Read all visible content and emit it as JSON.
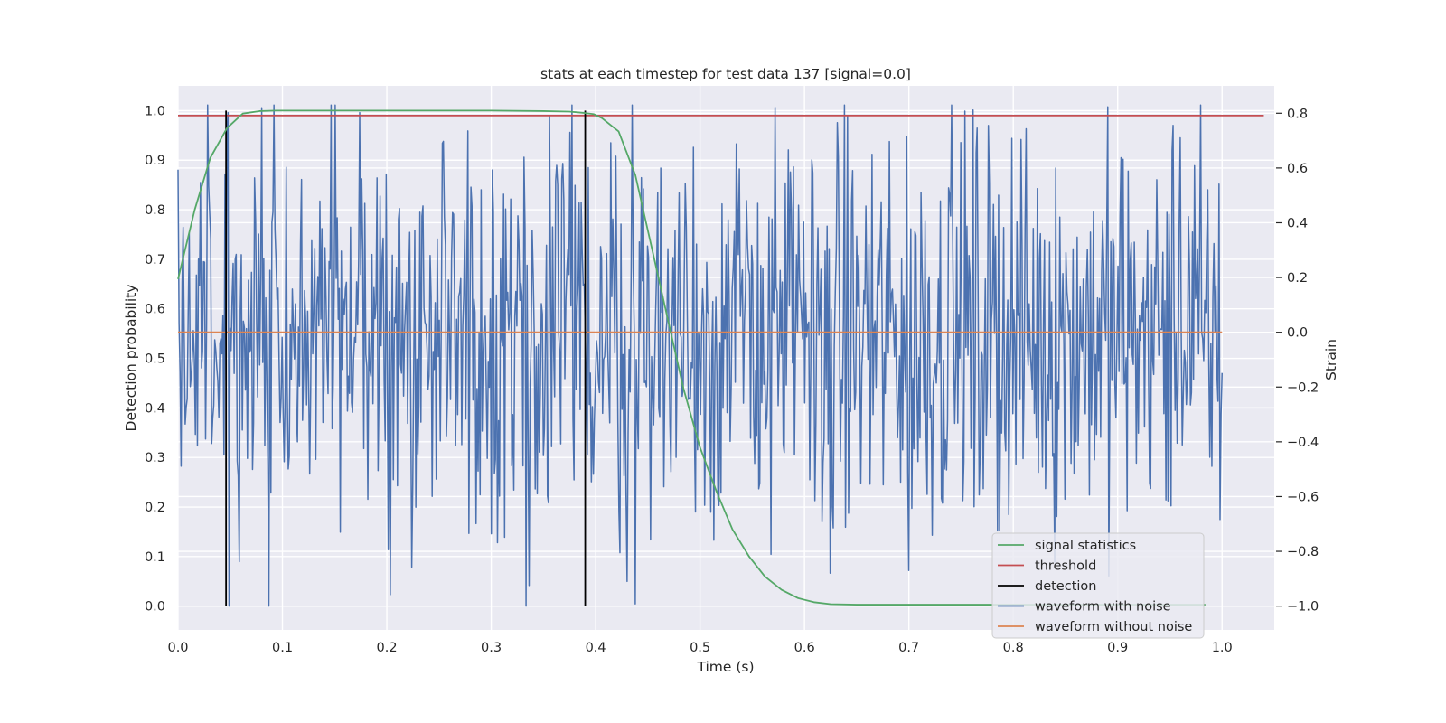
{
  "chart_data": {
    "type": "line",
    "title": "stats at each timestep for test data 137 [signal=0.0]",
    "xlabel": "Time (s)",
    "ylabel": "Detection probability",
    "y2label": "Strain",
    "xlim": [
      0.0,
      1.05
    ],
    "ylim": [
      -0.048,
      1.05
    ],
    "y2lim": [
      -1.087,
      0.9
    ],
    "xticks": [
      "0.0",
      "0.1",
      "0.2",
      "0.3",
      "0.4",
      "0.5",
      "0.6",
      "0.7",
      "0.8",
      "0.9",
      "1.0"
    ],
    "yticks": [
      "0.0",
      "0.1",
      "0.2",
      "0.3",
      "0.4",
      "0.5",
      "0.6",
      "0.7",
      "0.8",
      "0.9",
      "1.0"
    ],
    "y2ticks": [
      "−1.0",
      "−0.8",
      "−0.6",
      "−0.4",
      "−0.2",
      "0.0",
      "0.2",
      "0.4",
      "0.6",
      "0.8"
    ],
    "grid": true,
    "legend_position": "lower-right",
    "colors": {
      "signal_statistics": "#55a868",
      "threshold": "#c44e52",
      "detection": "#000000",
      "waveform_with_noise": "#4c72b0",
      "waveform_without_noise": "#dd8452",
      "axes_background": "#eaeaf2",
      "grid": "#ffffff"
    },
    "series": [
      {
        "name": "signal statistics",
        "axis": "left",
        "x": [
          0.0,
          0.016,
          0.031,
          0.047,
          0.062,
          0.078,
          0.094,
          0.109,
          0.125,
          0.2,
          0.3,
          0.35,
          0.375,
          0.39,
          0.398,
          0.406,
          0.422,
          0.438,
          0.453,
          0.469,
          0.484,
          0.5,
          0.516,
          0.531,
          0.547,
          0.562,
          0.578,
          0.594,
          0.609,
          0.625,
          0.65,
          0.7,
          0.8,
          0.9,
          0.984
        ],
        "y": [
          0.66,
          0.8,
          0.905,
          0.965,
          0.994,
          0.999,
          1.0,
          1.0,
          1.0,
          1.0,
          1.0,
          0.999,
          0.998,
          0.995,
          0.993,
          0.985,
          0.958,
          0.87,
          0.73,
          0.58,
          0.44,
          0.32,
          0.23,
          0.155,
          0.1,
          0.06,
          0.033,
          0.016,
          0.008,
          0.004,
          0.003,
          0.003,
          0.003,
          0.003,
          0.003
        ]
      },
      {
        "name": "threshold",
        "axis": "left",
        "x": [
          0.0,
          1.04
        ],
        "y": [
          0.99,
          0.99
        ]
      },
      {
        "name": "detection",
        "axis": "left",
        "segments": [
          {
            "x": 0.046,
            "y": [
              0.0,
              1.0
            ]
          },
          {
            "x": 0.39,
            "y": [
              0.0,
              1.0
            ]
          }
        ]
      },
      {
        "name": "waveform with noise",
        "axis": "right",
        "x_range": [
          0.0,
          1.0
        ],
        "points": 1024,
        "approx_extent": [
          -1.0,
          0.83
        ],
        "peaks": [
          {
            "x": 0.049,
            "y": -1.0
          },
          {
            "x": 0.08,
            "y": 0.82
          },
          {
            "x": 0.155,
            "y": -0.73
          },
          {
            "x": 0.253,
            "y": 0.69
          },
          {
            "x": 0.375,
            "y": 0.73
          },
          {
            "x": 0.43,
            "y": -0.91
          },
          {
            "x": 0.625,
            "y": -0.88
          },
          {
            "x": 0.7,
            "y": -0.87
          },
          {
            "x": 0.741,
            "y": 0.83
          },
          {
            "x": 0.96,
            "y": 0.71
          }
        ]
      },
      {
        "name": "waveform without noise",
        "axis": "right",
        "x": [
          0.0,
          1.0
        ],
        "y": [
          0.0,
          0.0
        ]
      }
    ],
    "legend": [
      "signal statistics",
      "threshold",
      "detection",
      "waveform with noise",
      "waveform without noise"
    ]
  }
}
